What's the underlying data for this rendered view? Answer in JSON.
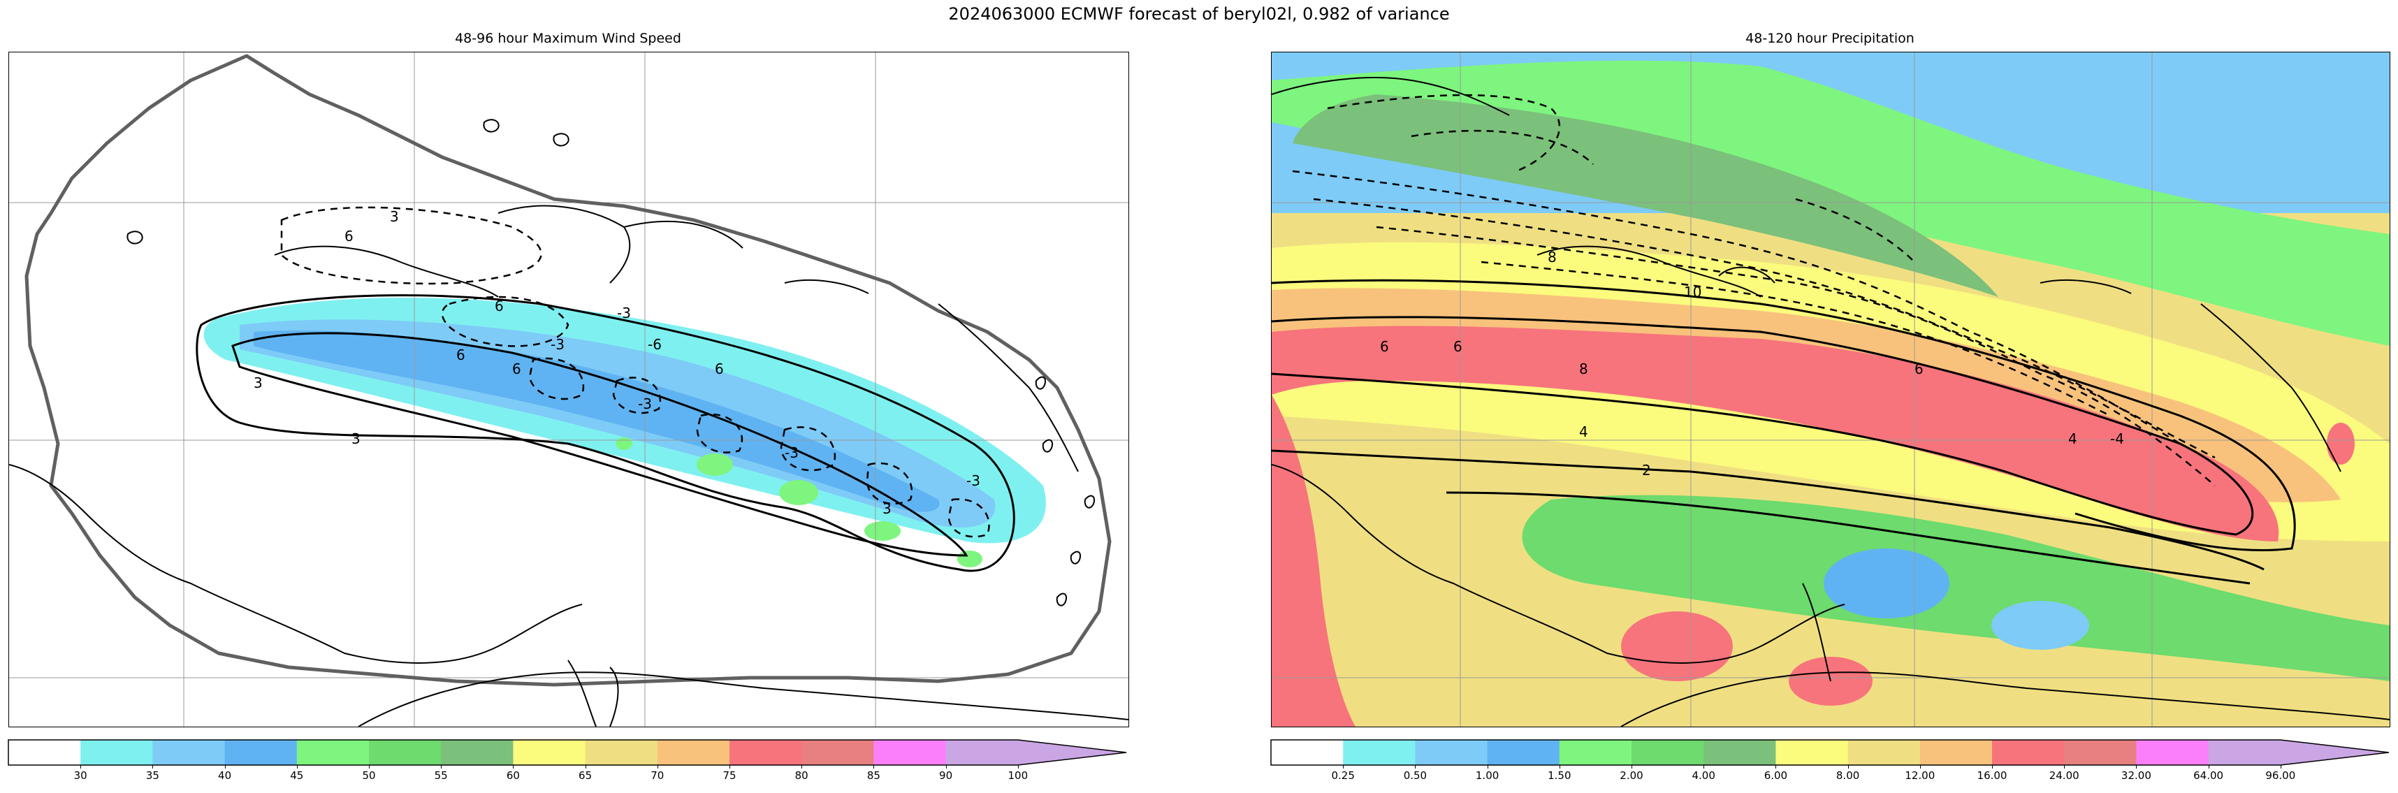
{
  "figure": {
    "title": "2024063000 ECMWF forecast of beryl02l, 0.982 of variance"
  },
  "panels": [
    {
      "title": "48-96 hour Maximum Wind Speed",
      "contour_labels": [
        "6",
        "3",
        "-3",
        "6",
        "-3",
        "-6",
        "6",
        "6",
        "6",
        "3",
        "-3",
        "-3",
        "3",
        "-3",
        "3"
      ],
      "colorbar": {
        "ticks": [
          "30",
          "35",
          "40",
          "45",
          "50",
          "55",
          "60",
          "65",
          "70",
          "75",
          "80",
          "85",
          "90",
          "100"
        ],
        "colors": [
          "#ffffff",
          "#7ff0f0",
          "#7ecbf7",
          "#60b3f2",
          "#7ef57e",
          "#6ddb6d",
          "#7bc07b",
          "#fbfb7e",
          "#efdf82",
          "#f8c27c",
          "#f7747c",
          "#e87f80",
          "#fb7ffb",
          "#caa6e4"
        ]
      }
    },
    {
      "title": "48-120 hour Precipitation",
      "contour_labels": [
        "8",
        "10",
        "6",
        "6",
        "8",
        "6",
        "4",
        "2",
        "4",
        "-4"
      ],
      "colorbar": {
        "ticks": [
          "0.25",
          "0.50",
          "1.00",
          "1.50",
          "2.00",
          "4.00",
          "6.00",
          "8.00",
          "12.00",
          "16.00",
          "24.00",
          "32.00",
          "64.00",
          "96.00"
        ],
        "colors": [
          "#ffffff",
          "#7ff0f0",
          "#7ecbf7",
          "#60b3f2",
          "#7ef57e",
          "#6ddb6d",
          "#7bc07b",
          "#fbfb7e",
          "#efdf82",
          "#f8c27c",
          "#f7747c",
          "#e87f80",
          "#fb7ffb",
          "#caa6e4"
        ]
      }
    }
  ]
}
